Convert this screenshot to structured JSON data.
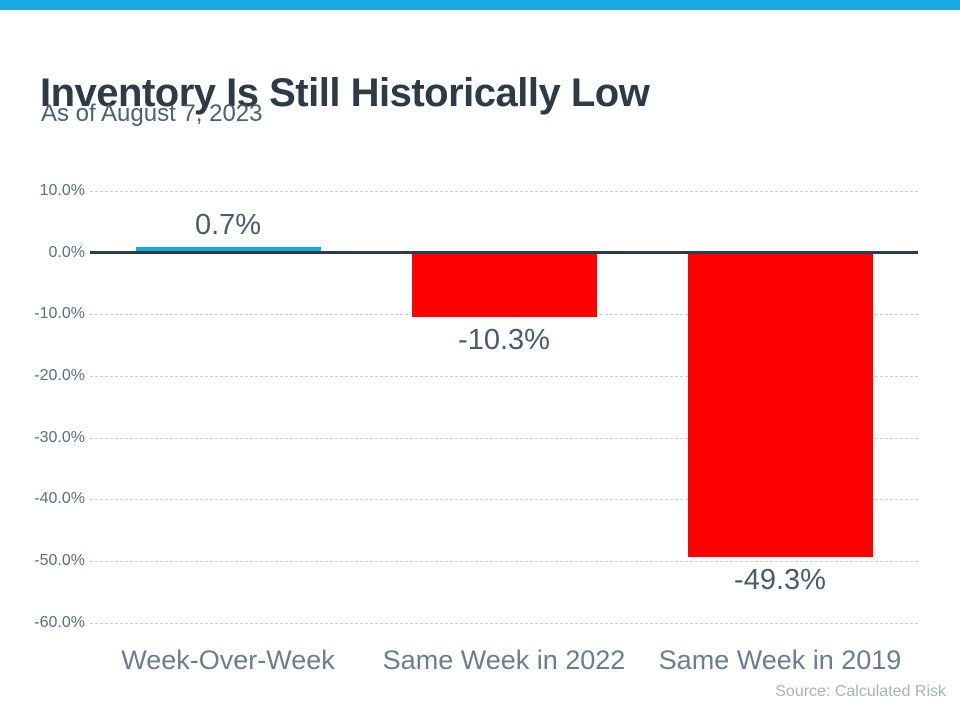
{
  "theme": {
    "accent_blue": "#17a9e2",
    "negative_red": "#fe0000",
    "axis_line_dark": "#2e3b47",
    "gridline_gray": "#cccccc"
  },
  "chart_data": {
    "type": "bar",
    "title": "Inventory Is Still Historically Low",
    "subtitle": "As of August 7, 2023",
    "categories": [
      "Week-Over-Week",
      "Same Week in 2022",
      "Same Week in 2019"
    ],
    "values": [
      0.7,
      -10.3,
      -49.3
    ],
    "value_labels": [
      "0.7%",
      "-10.3%",
      "-49.3%"
    ],
    "bar_colors": [
      "#17a9e2",
      "#fe0000",
      "#fe0000"
    ],
    "xlabel": "",
    "ylabel": "",
    "ylim": [
      -60,
      10
    ],
    "yticks": [
      10,
      0,
      -10,
      -20,
      -30,
      -40,
      -50,
      -60
    ],
    "ytick_labels": [
      "10.0%",
      "0.0%",
      "-10.0%",
      "-20.0%",
      "-30.0%",
      "-40.0%",
      "-50.0%",
      "-60.0%"
    ],
    "grid": "horizontal-dashed",
    "legend": "none",
    "source_note": "Source: Calculated Risk"
  }
}
